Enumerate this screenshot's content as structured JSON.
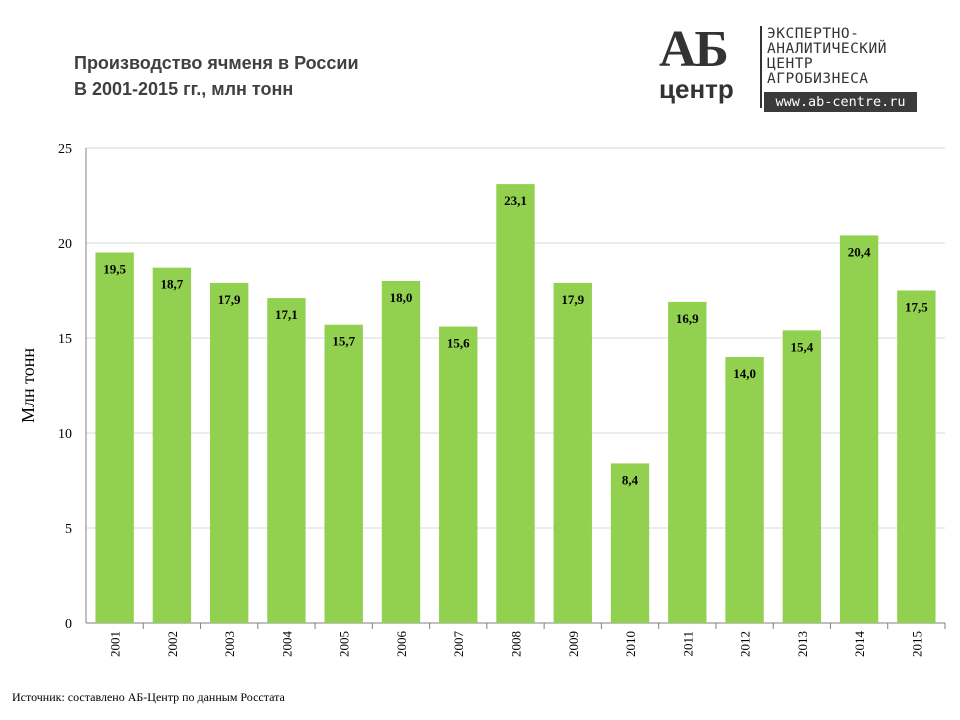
{
  "header": {
    "title_line1": "Производство ячменя в России",
    "title_line2": "В 2001-2015 гг., млн тонн"
  },
  "logo": {
    "mark_top": "АБ",
    "mark_bottom": "центр",
    "line1": "ЭКСПЕРТНО-",
    "line2": "АНАЛИТИЧЕСКИЙ",
    "line3": "ЦЕНТР",
    "line4": "АГРОБИЗНЕСА",
    "url": "www.ab-centre.ru"
  },
  "footer": {
    "source": "Источник: составлено АБ-Центр по данным Росстата"
  },
  "colors": {
    "bar": "#92d050",
    "gridline": "#d9d9d9",
    "axis": "#808080",
    "label": "#000000"
  },
  "chart_data": {
    "type": "bar",
    "title": "Производство ячменя в России В 2001-2015 гг., млн тонн",
    "xlabel": "",
    "ylabel": "Млн тонн",
    "ylim": [
      0,
      25
    ],
    "yticks": [
      0,
      5,
      10,
      15,
      20,
      25
    ],
    "grid": true,
    "categories": [
      "2001",
      "2002",
      "2003",
      "2004",
      "2005",
      "2006",
      "2007",
      "2008",
      "2009",
      "2010",
      "2011",
      "2012",
      "2013",
      "2014",
      "2015"
    ],
    "values": [
      19.5,
      18.7,
      17.9,
      17.1,
      15.7,
      18.0,
      15.6,
      23.1,
      17.9,
      8.4,
      16.9,
      14.0,
      15.4,
      20.4,
      17.5
    ],
    "data_labels": [
      "19,5",
      "18,7",
      "17,9",
      "17,1",
      "15,7",
      "18,0",
      "15,6",
      "23,1",
      "17,9",
      "8,4",
      "16,9",
      "14,0",
      "15,4",
      "20,4",
      "17,5"
    ]
  }
}
